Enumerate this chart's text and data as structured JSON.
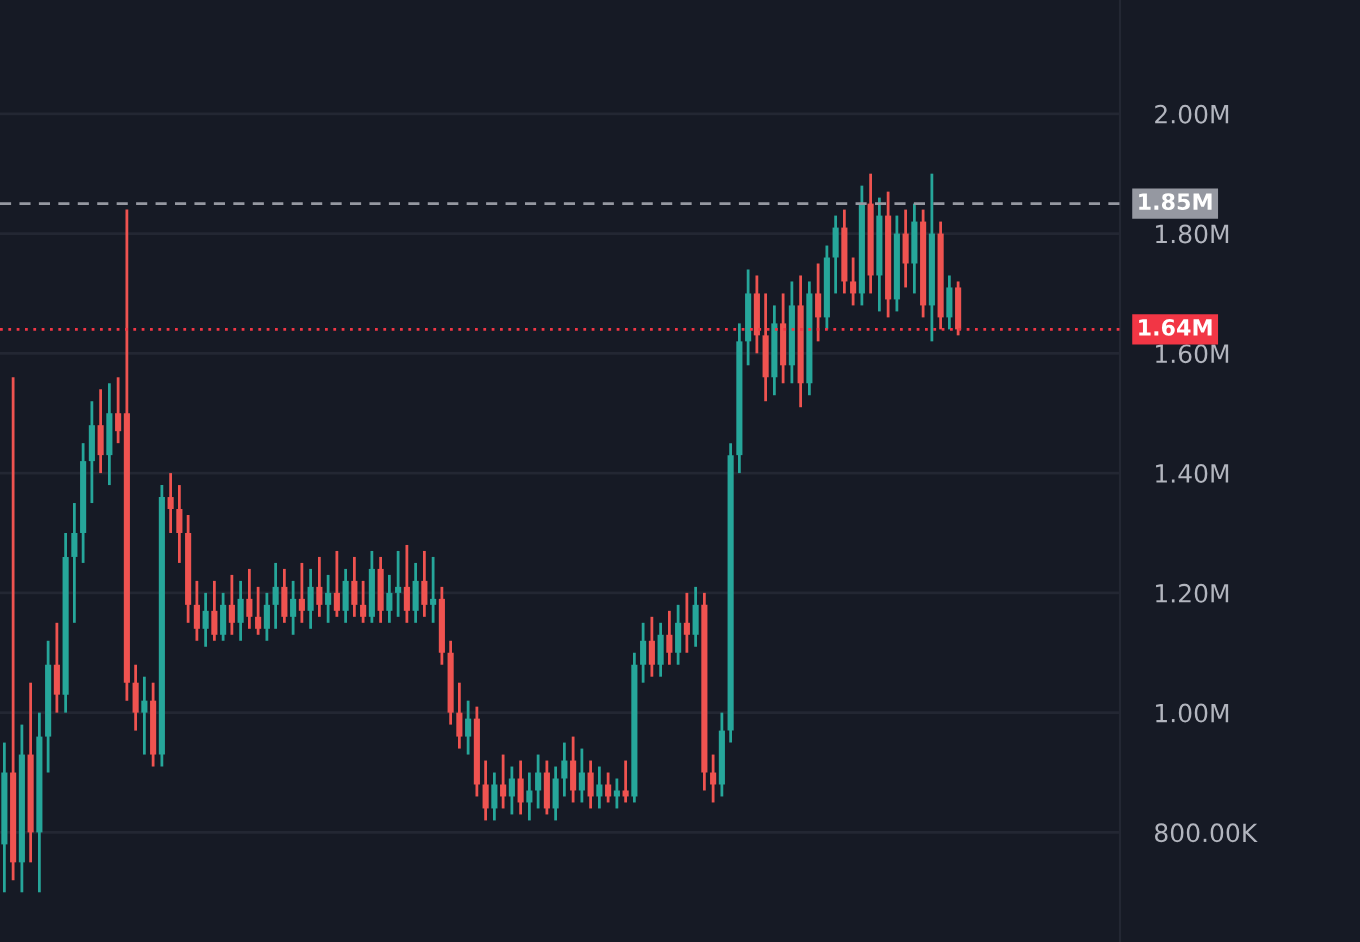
{
  "chart_data": {
    "type": "candlestick",
    "categories": [
      null,
      null,
      null,
      null,
      null,
      null,
      null,
      null,
      null,
      null,
      null,
      null,
      null,
      null,
      null,
      null,
      null,
      null,
      null,
      null,
      null,
      null,
      null,
      null,
      null,
      null,
      null,
      null,
      null,
      null,
      null,
      null,
      null,
      null,
      null,
      null,
      null,
      null,
      null,
      null,
      null,
      null,
      null,
      null,
      null,
      null,
      null,
      null,
      null,
      null,
      null,
      null,
      null,
      null,
      null,
      null,
      null,
      null,
      null,
      null,
      null,
      null,
      null,
      null,
      null,
      null,
      null,
      null,
      null,
      null,
      null,
      null,
      null,
      null,
      null,
      null,
      null,
      null,
      null,
      null,
      null,
      null,
      null,
      null,
      null,
      null,
      null,
      null,
      null,
      null,
      null,
      null,
      null,
      null,
      null,
      null,
      null,
      null,
      null,
      null,
      null,
      null,
      null,
      null,
      null,
      null,
      null,
      null,
      null,
      null,
      null,
      null,
      null,
      null,
      null,
      null,
      null,
      null,
      null,
      null,
      null,
      null,
      null,
      null,
      null,
      null,
      null,
      null
    ],
    "ohlc": [
      [
        780000,
        950000,
        700000,
        900000
      ],
      [
        900000,
        1560000,
        720000,
        750000
      ],
      [
        750000,
        980000,
        700000,
        930000
      ],
      [
        930000,
        1050000,
        750000,
        800000
      ],
      [
        800000,
        1000000,
        700000,
        960000
      ],
      [
        960000,
        1120000,
        900000,
        1080000
      ],
      [
        1080000,
        1150000,
        1000000,
        1030000
      ],
      [
        1030000,
        1300000,
        1000000,
        1260000
      ],
      [
        1260000,
        1350000,
        1150000,
        1300000
      ],
      [
        1300000,
        1450000,
        1250000,
        1420000
      ],
      [
        1420000,
        1520000,
        1350000,
        1480000
      ],
      [
        1480000,
        1540000,
        1400000,
        1430000
      ],
      [
        1430000,
        1550000,
        1380000,
        1500000
      ],
      [
        1500000,
        1560000,
        1450000,
        1470000
      ],
      [
        1500000,
        1840000,
        1020000,
        1050000
      ],
      [
        1050000,
        1080000,
        970000,
        1000000
      ],
      [
        1000000,
        1060000,
        930000,
        1020000
      ],
      [
        1020000,
        1050000,
        910000,
        930000
      ],
      [
        930000,
        1380000,
        910000,
        1360000
      ],
      [
        1360000,
        1400000,
        1300000,
        1340000
      ],
      [
        1340000,
        1380000,
        1250000,
        1300000
      ],
      [
        1300000,
        1330000,
        1150000,
        1180000
      ],
      [
        1180000,
        1220000,
        1120000,
        1140000
      ],
      [
        1140000,
        1200000,
        1110000,
        1170000
      ],
      [
        1170000,
        1220000,
        1120000,
        1130000
      ],
      [
        1130000,
        1200000,
        1120000,
        1180000
      ],
      [
        1180000,
        1230000,
        1130000,
        1150000
      ],
      [
        1150000,
        1220000,
        1120000,
        1190000
      ],
      [
        1190000,
        1240000,
        1140000,
        1160000
      ],
      [
        1160000,
        1210000,
        1130000,
        1140000
      ],
      [
        1140000,
        1200000,
        1120000,
        1180000
      ],
      [
        1180000,
        1250000,
        1140000,
        1210000
      ],
      [
        1210000,
        1240000,
        1150000,
        1160000
      ],
      [
        1160000,
        1220000,
        1130000,
        1190000
      ],
      [
        1190000,
        1250000,
        1150000,
        1170000
      ],
      [
        1170000,
        1240000,
        1140000,
        1210000
      ],
      [
        1210000,
        1260000,
        1160000,
        1180000
      ],
      [
        1180000,
        1230000,
        1150000,
        1200000
      ],
      [
        1200000,
        1270000,
        1160000,
        1170000
      ],
      [
        1170000,
        1240000,
        1150000,
        1220000
      ],
      [
        1220000,
        1260000,
        1160000,
        1180000
      ],
      [
        1180000,
        1220000,
        1150000,
        1160000
      ],
      [
        1160000,
        1270000,
        1150000,
        1240000
      ],
      [
        1240000,
        1260000,
        1150000,
        1170000
      ],
      [
        1170000,
        1230000,
        1150000,
        1200000
      ],
      [
        1200000,
        1270000,
        1160000,
        1210000
      ],
      [
        1210000,
        1280000,
        1150000,
        1170000
      ],
      [
        1170000,
        1250000,
        1150000,
        1220000
      ],
      [
        1220000,
        1270000,
        1160000,
        1180000
      ],
      [
        1180000,
        1260000,
        1150000,
        1190000
      ],
      [
        1190000,
        1210000,
        1080000,
        1100000
      ],
      [
        1100000,
        1120000,
        980000,
        1000000
      ],
      [
        1000000,
        1050000,
        940000,
        960000
      ],
      [
        960000,
        1020000,
        930000,
        990000
      ],
      [
        990000,
        1010000,
        860000,
        880000
      ],
      [
        880000,
        920000,
        820000,
        840000
      ],
      [
        840000,
        900000,
        820000,
        880000
      ],
      [
        880000,
        930000,
        840000,
        860000
      ],
      [
        860000,
        910000,
        830000,
        890000
      ],
      [
        890000,
        920000,
        830000,
        850000
      ],
      [
        850000,
        900000,
        820000,
        870000
      ],
      [
        870000,
        930000,
        840000,
        900000
      ],
      [
        900000,
        920000,
        830000,
        840000
      ],
      [
        840000,
        910000,
        820000,
        890000
      ],
      [
        890000,
        950000,
        860000,
        920000
      ],
      [
        920000,
        960000,
        850000,
        870000
      ],
      [
        870000,
        940000,
        850000,
        900000
      ],
      [
        900000,
        920000,
        840000,
        860000
      ],
      [
        860000,
        910000,
        840000,
        880000
      ],
      [
        880000,
        900000,
        850000,
        860000
      ],
      [
        860000,
        890000,
        840000,
        870000
      ],
      [
        870000,
        920000,
        850000,
        860000
      ],
      [
        860000,
        1100000,
        850000,
        1080000
      ],
      [
        1080000,
        1150000,
        1050000,
        1120000
      ],
      [
        1120000,
        1160000,
        1060000,
        1080000
      ],
      [
        1080000,
        1150000,
        1060000,
        1130000
      ],
      [
        1130000,
        1170000,
        1080000,
        1100000
      ],
      [
        1100000,
        1180000,
        1080000,
        1150000
      ],
      [
        1150000,
        1200000,
        1100000,
        1130000
      ],
      [
        1130000,
        1210000,
        1110000,
        1180000
      ],
      [
        1180000,
        1200000,
        870000,
        900000
      ],
      [
        900000,
        930000,
        850000,
        880000
      ],
      [
        880000,
        1000000,
        860000,
        970000
      ],
      [
        970000,
        1450000,
        950000,
        1430000
      ],
      [
        1430000,
        1650000,
        1400000,
        1620000
      ],
      [
        1620000,
        1740000,
        1580000,
        1700000
      ],
      [
        1700000,
        1730000,
        1600000,
        1630000
      ],
      [
        1630000,
        1700000,
        1520000,
        1560000
      ],
      [
        1560000,
        1680000,
        1530000,
        1650000
      ],
      [
        1650000,
        1700000,
        1550000,
        1580000
      ],
      [
        1580000,
        1720000,
        1550000,
        1680000
      ],
      [
        1680000,
        1730000,
        1510000,
        1550000
      ],
      [
        1550000,
        1720000,
        1530000,
        1700000
      ],
      [
        1700000,
        1750000,
        1620000,
        1660000
      ],
      [
        1660000,
        1780000,
        1640000,
        1760000
      ],
      [
        1760000,
        1830000,
        1700000,
        1810000
      ],
      [
        1810000,
        1840000,
        1700000,
        1720000
      ],
      [
        1720000,
        1760000,
        1680000,
        1700000
      ],
      [
        1700000,
        1880000,
        1680000,
        1850000
      ],
      [
        1850000,
        1900000,
        1700000,
        1730000
      ],
      [
        1730000,
        1860000,
        1670000,
        1830000
      ],
      [
        1830000,
        1870000,
        1660000,
        1690000
      ],
      [
        1690000,
        1830000,
        1670000,
        1800000
      ],
      [
        1800000,
        1840000,
        1710000,
        1750000
      ],
      [
        1750000,
        1850000,
        1700000,
        1820000
      ],
      [
        1820000,
        1840000,
        1660000,
        1680000
      ],
      [
        1680000,
        1900000,
        1620000,
        1800000
      ],
      [
        1800000,
        1820000,
        1640000,
        1660000
      ],
      [
        1660000,
        1730000,
        1640000,
        1710000
      ],
      [
        1710000,
        1720000,
        1630000,
        1640000
      ],
      null,
      null,
      null,
      null,
      null,
      null,
      null,
      null,
      null,
      null,
      null,
      null,
      null,
      null,
      null,
      null,
      null,
      null
    ],
    "ylim": [
      617000,
      2190000
    ],
    "yticks": [
      {
        "value": 800000,
        "label": "800.00K"
      },
      {
        "value": 1000000,
        "label": "1.00M"
      },
      {
        "value": 1200000,
        "label": "1.20M"
      },
      {
        "value": 1400000,
        "label": "1.40M"
      },
      {
        "value": 1600000,
        "label": "1.60M"
      },
      {
        "value": 1800000,
        "label": "1.80M"
      },
      {
        "value": 2000000,
        "label": "2.00M"
      }
    ],
    "grid": "y",
    "ref_lines": [
      {
        "axis": "y",
        "value": 1850000,
        "label": "1.85M",
        "color": "#9598a1",
        "line_style": "dashed"
      },
      {
        "axis": "y",
        "value": 1640000,
        "label": "1.64M",
        "color": "#f23645",
        "line_style": "dotted"
      }
    ]
  }
}
